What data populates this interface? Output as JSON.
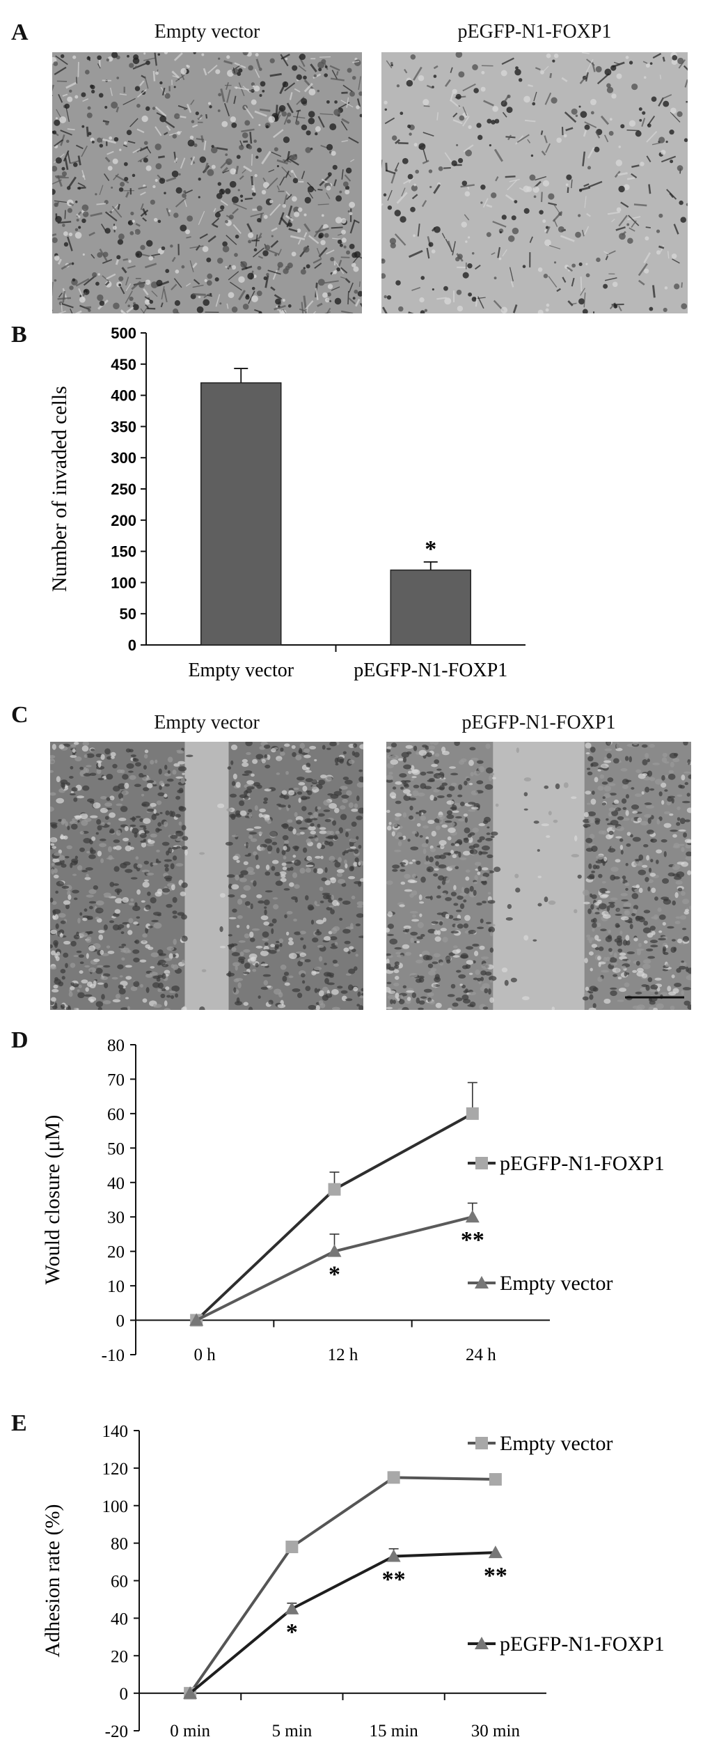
{
  "panels": {
    "A": {
      "letter": "A",
      "images": [
        {
          "title": "Empty vector",
          "tone": "#9a9a9a",
          "texture": "dense-dark-cells"
        },
        {
          "title": "pEGFP-N1-FOXP1",
          "tone": "#b8b8b8",
          "texture": "sparse-cells"
        }
      ]
    },
    "B": {
      "letter": "B"
    },
    "C": {
      "letter": "C",
      "images": [
        {
          "title": "Empty vector",
          "tone": "#7a7a7a",
          "texture": "narrow-gap"
        },
        {
          "title": "pEGFP-N1-FOXP1",
          "tone": "#8a8a8a",
          "texture": "wide-gap"
        }
      ]
    },
    "D": {
      "letter": "D"
    },
    "E": {
      "letter": "E"
    }
  },
  "chart_data": [
    {
      "id": "B",
      "type": "bar",
      "categories": [
        "Empty vector",
        "pEGFP-N1-FOXP1"
      ],
      "values": [
        420,
        120
      ],
      "errors": [
        23,
        13
      ],
      "annotations": [
        "",
        "*"
      ],
      "ylabel": "Number of invaded cells",
      "ylim": [
        0,
        500
      ],
      "yticks": [
        "0",
        "50",
        "100",
        "150",
        "200",
        "250",
        "300",
        "350",
        "400",
        "450",
        "500"
      ],
      "bar_color": "#5f5f5f",
      "grid": false
    },
    {
      "id": "D",
      "type": "line",
      "categories": [
        "0 h",
        "12 h",
        "24 h"
      ],
      "ylabel": "Would closure (μM)",
      "ylim": [
        -10,
        80
      ],
      "yticks": [
        "-10",
        "0",
        "10",
        "20",
        "30",
        "40",
        "50",
        "60",
        "70",
        "80"
      ],
      "series": [
        {
          "name": "pEGFP-N1-FOXP1",
          "values": [
            0,
            38,
            60
          ],
          "errors": [
            0,
            5,
            9
          ],
          "marker": "square",
          "marker_color": "#a8a8a8",
          "line_color": "#2e2e2e",
          "annotations": [
            "",
            "",
            ""
          ]
        },
        {
          "name": "Empty vector",
          "values": [
            0,
            20,
            30
          ],
          "errors": [
            0,
            5,
            4
          ],
          "marker": "triangle",
          "marker_color": "#777777",
          "line_color": "#5a5a5a",
          "annotations": [
            "",
            "*",
            "**"
          ]
        }
      ],
      "legend": "right",
      "grid": false
    },
    {
      "id": "E",
      "type": "line",
      "categories": [
        "0 min",
        "5 min",
        "15 min",
        "30 min"
      ],
      "ylabel": "Adhesion rate (%)",
      "ylim": [
        -20,
        140
      ],
      "yticks": [
        "-20",
        "0",
        "20",
        "40",
        "60",
        "80",
        "100",
        "120",
        "140"
      ],
      "series": [
        {
          "name": "Empty vector",
          "values": [
            0,
            78,
            115,
            114
          ],
          "errors": [
            0,
            0,
            3,
            0
          ],
          "marker": "square",
          "marker_color": "#a8a8a8",
          "line_color": "#555555",
          "annotations": [
            "",
            "",
            "",
            ""
          ]
        },
        {
          "name": "pEGFP-N1-FOXP1",
          "values": [
            0,
            45,
            73,
            75
          ],
          "errors": [
            0,
            3,
            4,
            0
          ],
          "marker": "triangle",
          "marker_color": "#777777",
          "line_color": "#1e1e1e",
          "annotations": [
            "",
            "*",
            "**",
            "**"
          ]
        }
      ],
      "legend": "right",
      "grid": false
    }
  ]
}
